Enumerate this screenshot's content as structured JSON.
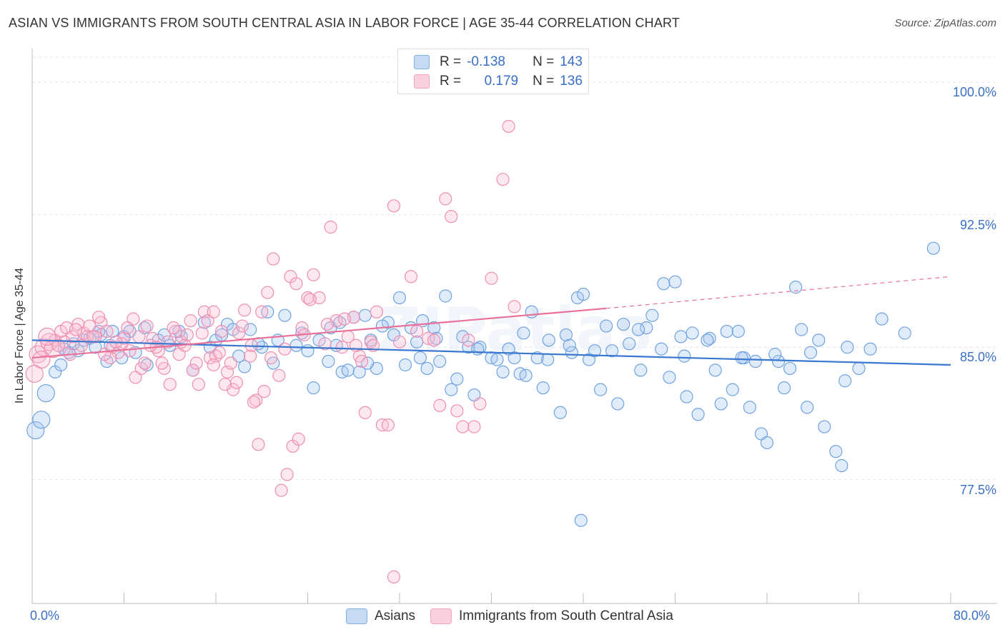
{
  "title": "ASIAN VS IMMIGRANTS FROM SOUTH CENTRAL ASIA IN LABOR FORCE | AGE 35-44 CORRELATION CHART",
  "source": "Source: ZipAtlas.com",
  "colors": {
    "asians": "#7fb0e8",
    "asians_line": "#3a78d0",
    "immigrants": "#f4a3c0",
    "immigrants_line": "#e8729a",
    "accent_text": "#3a6fc4"
  },
  "legend": {
    "r_label": "R =",
    "n_label": "N =",
    "rows": [
      {
        "r": "-0.138",
        "n": "143"
      },
      {
        "r": "0.179",
        "n": "136"
      }
    ]
  },
  "chart_data": {
    "type": "scatter",
    "title": "ASIAN VS IMMIGRANTS FROM SOUTH CENTRAL ASIA IN LABOR FORCE | AGE 35-44 CORRELATION CHART",
    "xlabel": "",
    "ylabel": "In Labor Force | Age 35-44",
    "xlim": [
      0,
      80
    ],
    "ylim": [
      70.5,
      101.5
    ],
    "x_tick_labels": [
      "0.0%",
      "80.0%"
    ],
    "y_ticks": [
      77.5,
      85.0,
      92.5,
      100.0
    ],
    "y_tick_labels": [
      "77.5%",
      "85.0%",
      "92.5%",
      "100.0%"
    ],
    "grid": true,
    "legend_position": "bottom",
    "series": [
      {
        "name": "Asians",
        "r": -0.138,
        "n": 143,
        "trend": {
          "x": [
            0,
            80
          ],
          "y": [
            85.4,
            84.0
          ]
        },
        "points": [
          [
            0.3,
            80.3
          ],
          [
            0.8,
            80.9
          ],
          [
            1.2,
            82.4
          ],
          [
            2.0,
            83.6
          ],
          [
            2.5,
            84.0
          ],
          [
            3.2,
            84.7
          ],
          [
            4.0,
            84.8
          ],
          [
            5.0,
            85.5
          ],
          [
            5.5,
            85.0
          ],
          [
            6.0,
            85.7
          ],
          [
            6.5,
            84.2
          ],
          [
            7.0,
            85.9
          ],
          [
            8.0,
            85.6
          ],
          [
            8.5,
            85.9
          ],
          [
            9.0,
            84.7
          ],
          [
            10.0,
            84.0
          ],
          [
            11.0,
            85.4
          ],
          [
            12.0,
            85.1
          ],
          [
            13.0,
            85.6
          ],
          [
            14.0,
            83.7
          ],
          [
            15.5,
            85.0
          ],
          [
            16.0,
            85.4
          ],
          [
            17.0,
            86.3
          ],
          [
            17.5,
            86.0
          ],
          [
            18.0,
            84.5
          ],
          [
            18.5,
            83.9
          ],
          [
            19.0,
            86.0
          ],
          [
            20.0,
            85.0
          ],
          [
            20.5,
            87.0
          ],
          [
            21.0,
            84.1
          ],
          [
            22.0,
            86.8
          ],
          [
            23.0,
            85.1
          ],
          [
            24.0,
            84.8
          ],
          [
            24.5,
            82.7
          ],
          [
            25.0,
            85.4
          ],
          [
            26.0,
            86.1
          ],
          [
            26.5,
            85.1
          ],
          [
            27.0,
            83.6
          ],
          [
            27.5,
            83.7
          ],
          [
            28.0,
            86.7
          ],
          [
            28.5,
            83.6
          ],
          [
            29.0,
            86.8
          ],
          [
            29.5,
            85.4
          ],
          [
            30.0,
            83.8
          ],
          [
            31.0,
            86.4
          ],
          [
            31.5,
            85.7
          ],
          [
            32.0,
            87.8
          ],
          [
            32.5,
            84.0
          ],
          [
            33.0,
            86.1
          ],
          [
            33.5,
            85.3
          ],
          [
            34.0,
            86.5
          ],
          [
            35.0,
            86.1
          ],
          [
            35.5,
            84.2
          ],
          [
            36.0,
            87.9
          ],
          [
            36.5,
            82.6
          ],
          [
            37.0,
            83.2
          ],
          [
            37.5,
            85.6
          ],
          [
            38.0,
            85.0
          ],
          [
            38.5,
            82.3
          ],
          [
            39.0,
            85.0
          ],
          [
            40.0,
            84.4
          ],
          [
            40.5,
            84.3
          ],
          [
            41.0,
            83.6
          ],
          [
            41.5,
            84.9
          ],
          [
            42.0,
            84.4
          ],
          [
            42.5,
            83.5
          ],
          [
            43.0,
            83.4
          ],
          [
            43.5,
            87.0
          ],
          [
            44.0,
            84.4
          ],
          [
            44.5,
            82.7
          ],
          [
            45.0,
            85.4
          ],
          [
            46.0,
            81.3
          ],
          [
            46.5,
            85.7
          ],
          [
            47.0,
            84.7
          ],
          [
            47.5,
            87.8
          ],
          [
            48.0,
            88.0
          ],
          [
            48.5,
            84.3
          ],
          [
            49.0,
            84.8
          ],
          [
            49.5,
            82.6
          ],
          [
            50.0,
            86.2
          ],
          [
            50.5,
            84.8
          ],
          [
            51.0,
            81.8
          ],
          [
            51.5,
            86.3
          ],
          [
            52.0,
            85.2
          ],
          [
            53.0,
            83.7
          ],
          [
            53.5,
            86.1
          ],
          [
            54.0,
            86.8
          ],
          [
            55.0,
            88.6
          ],
          [
            55.5,
            83.3
          ],
          [
            56.0,
            88.7
          ],
          [
            56.5,
            85.6
          ],
          [
            57.0,
            82.2
          ],
          [
            57.5,
            85.8
          ],
          [
            58.0,
            81.2
          ],
          [
            59.0,
            85.5
          ],
          [
            59.5,
            83.7
          ],
          [
            60.0,
            81.8
          ],
          [
            60.5,
            85.9
          ],
          [
            61.0,
            82.6
          ],
          [
            61.5,
            85.9
          ],
          [
            62.0,
            84.4
          ],
          [
            62.5,
            81.6
          ],
          [
            63.0,
            84.2
          ],
          [
            63.5,
            80.1
          ],
          [
            64.0,
            79.6
          ],
          [
            65.0,
            84.2
          ],
          [
            65.5,
            82.7
          ],
          [
            66.0,
            83.8
          ],
          [
            66.5,
            88.4
          ],
          [
            67.0,
            86.0
          ],
          [
            67.5,
            81.6
          ],
          [
            68.5,
            85.4
          ],
          [
            69.0,
            80.5
          ],
          [
            70.0,
            79.1
          ],
          [
            70.5,
            78.3
          ],
          [
            71.0,
            85.0
          ],
          [
            72.0,
            83.8
          ],
          [
            74.0,
            86.6
          ],
          [
            76.0,
            85.8
          ],
          [
            78.5,
            90.6
          ],
          [
            47.8,
            75.2
          ],
          [
            33.8,
            84.4
          ],
          [
            35.2,
            85.5
          ],
          [
            29.2,
            84.1
          ],
          [
            25.8,
            84.2
          ],
          [
            21.4,
            85.4
          ],
          [
            15.0,
            86.4
          ],
          [
            11.5,
            85.7
          ],
          [
            9.8,
            86.1
          ],
          [
            7.8,
            84.4
          ],
          [
            6.8,
            85.1
          ],
          [
            5.8,
            85.9
          ],
          [
            4.5,
            85.4
          ],
          [
            3.6,
            85.2
          ],
          [
            2.8,
            84.9
          ],
          [
            12.8,
            85.9
          ],
          [
            16.5,
            85.7
          ],
          [
            19.7,
            85.2
          ],
          [
            23.5,
            85.8
          ],
          [
            26.8,
            86.4
          ],
          [
            30.5,
            86.2
          ],
          [
            34.4,
            83.8
          ],
          [
            38.8,
            84.9
          ],
          [
            42.8,
            85.8
          ],
          [
            44.9,
            84.3
          ],
          [
            46.8,
            85.1
          ],
          [
            52.8,
            86.0
          ],
          [
            54.8,
            84.9
          ],
          [
            56.8,
            84.5
          ],
          [
            58.8,
            85.4
          ],
          [
            61.8,
            84.4
          ],
          [
            64.7,
            84.6
          ],
          [
            67.8,
            84.7
          ],
          [
            70.8,
            83.1
          ],
          [
            73.0,
            84.9
          ]
        ]
      },
      {
        "name": "Immigrants from South Central Asia",
        "r": 0.179,
        "n": 136,
        "trend": {
          "x": [
            0,
            50,
            80
          ],
          "y": [
            84.4,
            87.2,
            89.0
          ]
        },
        "points": [
          [
            0.2,
            83.5
          ],
          [
            0.5,
            84.6
          ],
          [
            1.0,
            85.0
          ],
          [
            1.5,
            85.3
          ],
          [
            2.0,
            85.4
          ],
          [
            2.5,
            85.9
          ],
          [
            3.0,
            86.1
          ],
          [
            3.5,
            85.6
          ],
          [
            4.0,
            86.3
          ],
          [
            4.5,
            85.8
          ],
          [
            5.0,
            86.2
          ],
          [
            5.5,
            85.6
          ],
          [
            6.0,
            86.4
          ],
          [
            6.5,
            85.9
          ],
          [
            7.0,
            85.0
          ],
          [
            7.5,
            84.7
          ],
          [
            8.0,
            85.5
          ],
          [
            8.5,
            84.8
          ],
          [
            9.0,
            83.3
          ],
          [
            9.5,
            83.8
          ],
          [
            10.0,
            86.2
          ],
          [
            10.5,
            85.5
          ],
          [
            11.0,
            84.8
          ],
          [
            11.5,
            83.8
          ],
          [
            12.0,
            82.9
          ],
          [
            12.5,
            85.9
          ],
          [
            13.0,
            85.3
          ],
          [
            13.5,
            85.7
          ],
          [
            14.0,
            83.7
          ],
          [
            14.5,
            82.9
          ],
          [
            15.0,
            87.0
          ],
          [
            15.5,
            84.4
          ],
          [
            16.0,
            84.5
          ],
          [
            16.5,
            85.9
          ],
          [
            17.0,
            83.6
          ],
          [
            17.5,
            82.6
          ],
          [
            18.0,
            85.8
          ],
          [
            18.5,
            87.1
          ],
          [
            19.0,
            84.5
          ],
          [
            19.5,
            82.0
          ],
          [
            20.0,
            87.0
          ],
          [
            20.5,
            88.1
          ],
          [
            21.0,
            90.0
          ],
          [
            21.5,
            83.4
          ],
          [
            22.0,
            84.9
          ],
          [
            22.5,
            89.0
          ],
          [
            23.0,
            88.6
          ],
          [
            23.5,
            86.1
          ],
          [
            24.0,
            87.8
          ],
          [
            24.5,
            89.1
          ],
          [
            25.0,
            87.8
          ],
          [
            25.5,
            85.2
          ],
          [
            26.0,
            91.8
          ],
          [
            26.5,
            86.5
          ],
          [
            27.0,
            85.0
          ],
          [
            27.5,
            85.6
          ],
          [
            28.0,
            86.7
          ],
          [
            28.5,
            84.5
          ],
          [
            29.0,
            81.3
          ],
          [
            29.5,
            85.3
          ],
          [
            30.0,
            87.0
          ],
          [
            30.5,
            80.6
          ],
          [
            31.0,
            80.6
          ],
          [
            31.5,
            93.0
          ],
          [
            32.0,
            85.3
          ],
          [
            33.0,
            89.0
          ],
          [
            33.5,
            85.9
          ],
          [
            34.0,
            100.0
          ],
          [
            34.5,
            85.5
          ],
          [
            35.0,
            85.4
          ],
          [
            35.5,
            81.7
          ],
          [
            36.0,
            93.4
          ],
          [
            36.5,
            92.4
          ],
          [
            37.0,
            81.4
          ],
          [
            37.5,
            80.5
          ],
          [
            38.0,
            85.4
          ],
          [
            38.5,
            80.5
          ],
          [
            39.0,
            81.8
          ],
          [
            40.0,
            88.9
          ],
          [
            41.0,
            94.5
          ],
          [
            41.5,
            97.5
          ],
          [
            42.0,
            87.3
          ],
          [
            19.3,
            81.9
          ],
          [
            19.7,
            79.5
          ],
          [
            20.2,
            82.5
          ],
          [
            20.8,
            84.4
          ],
          [
            21.7,
            76.9
          ],
          [
            22.7,
            79.4
          ],
          [
            22.2,
            77.8
          ],
          [
            23.2,
            79.8
          ],
          [
            23.7,
            85.7
          ],
          [
            24.2,
            87.7
          ],
          [
            25.7,
            86.3
          ],
          [
            27.2,
            86.6
          ],
          [
            28.2,
            85.1
          ],
          [
            28.7,
            84.2
          ],
          [
            29.7,
            85.1
          ],
          [
            31.5,
            72.0
          ],
          [
            17.8,
            83.0
          ],
          [
            16.8,
            82.9
          ],
          [
            15.8,
            84.0
          ],
          [
            15.3,
            86.5
          ],
          [
            14.8,
            85.8
          ],
          [
            13.8,
            86.5
          ],
          [
            12.8,
            84.6
          ],
          [
            11.8,
            85.3
          ],
          [
            10.8,
            85.0
          ],
          [
            9.8,
            84.1
          ],
          [
            8.8,
            86.6
          ],
          [
            7.8,
            85.2
          ],
          [
            6.8,
            84.4
          ],
          [
            5.8,
            86.7
          ],
          [
            4.8,
            85.6
          ],
          [
            3.8,
            86.0
          ],
          [
            2.8,
            85.3
          ],
          [
            1.8,
            84.9
          ],
          [
            0.8,
            84.3
          ],
          [
            1.3,
            85.6
          ],
          [
            2.3,
            85.1
          ],
          [
            3.3,
            84.6
          ],
          [
            4.3,
            85.1
          ],
          [
            5.3,
            85.6
          ],
          [
            6.3,
            84.6
          ],
          [
            7.3,
            85.3
          ],
          [
            8.3,
            86.1
          ],
          [
            9.3,
            85.6
          ],
          [
            10.3,
            85.1
          ],
          [
            11.3,
            84.1
          ],
          [
            12.3,
            86.1
          ],
          [
            13.3,
            85.1
          ],
          [
            14.3,
            84.1
          ],
          [
            15.8,
            87.0
          ],
          [
            16.3,
            84.7
          ],
          [
            17.3,
            84.1
          ],
          [
            18.3,
            86.2
          ],
          [
            19.1,
            85.1
          ]
        ]
      }
    ]
  },
  "bottom_legend": [
    "Asians",
    "Immigrants from South Central Asia"
  ],
  "watermark": "ZIPatlas"
}
